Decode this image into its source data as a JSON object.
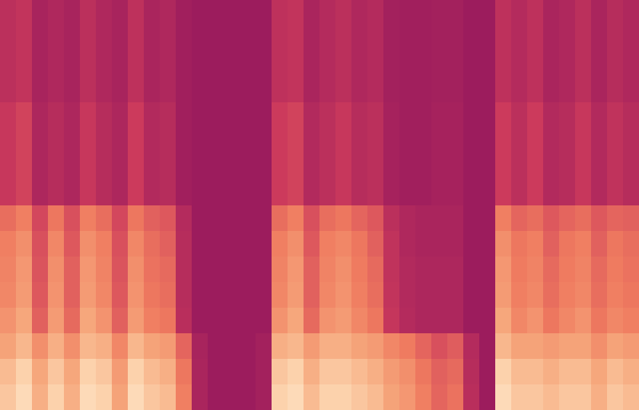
{
  "chart_data": {
    "type": "heatmap",
    "tick_labels": false,
    "zlim": [
      2,
      10
    ],
    "z": [
      [
        8.4,
        9,
        7.8,
        8.7,
        7.8,
        9,
        8.7,
        7.5,
        9,
        8.4,
        8.1,
        6.6,
        3.6,
        3,
        3,
        3,
        3.3,
        8.7,
        9,
        8.1,
        8.7,
        8.7,
        8.4,
        8.1,
        7.5,
        7.2,
        6.6,
        6,
        6.3,
        4.2,
        3,
        9,
        8.4,
        8.4,
        8.1,
        8.4,
        8.4,
        7.8,
        8.4,
        8.1
      ],
      [
        8.1,
        8.7,
        7.6,
        8.4,
        7.6,
        8.7,
        8.4,
        7.3,
        8.7,
        8.1,
        7.8,
        6.4,
        3.6,
        3,
        3,
        3,
        3.3,
        8.4,
        8.7,
        7.8,
        8.4,
        8.4,
        8.1,
        7.8,
        7.3,
        7,
        6.4,
        5.9,
        6.1,
        4.1,
        3,
        8.7,
        8.1,
        8.1,
        7.8,
        8.1,
        8.1,
        7.6,
        8.1,
        7.8
      ],
      [
        7.5,
        8,
        7,
        7.8,
        7,
        8,
        7.8,
        6.8,
        8,
        7.5,
        7.3,
        6,
        3.5,
        3,
        3,
        3,
        3.3,
        7.8,
        8,
        7.3,
        7.8,
        7.8,
        7.5,
        7.3,
        6.8,
        6.5,
        6,
        5.5,
        5.8,
        4,
        3,
        8,
        7.5,
        7.5,
        7.3,
        7.5,
        7.5,
        7,
        7.5,
        7.3
      ],
      [
        7.1,
        7.6,
        5.9,
        7.3,
        6.1,
        7.6,
        7.1,
        5.9,
        7.3,
        6.6,
        6.4,
        4.2,
        3,
        3,
        3,
        3,
        3,
        7.1,
        7.6,
        6.1,
        7.1,
        7.3,
        6.8,
        6.4,
        4.7,
        4,
        3.7,
        3.7,
        3.7,
        3,
        3,
        7.6,
        6.8,
        7.1,
        6.4,
        6.8,
        7.1,
        6.4,
        6.8,
        6.6
      ],
      [
        6.8,
        7.3,
        5.7,
        7.1,
        5.9,
        7.3,
        6.8,
        5.7,
        7.1,
        6.4,
        6.2,
        4.1,
        3,
        3,
        3,
        3,
        3,
        6.8,
        7.3,
        5.9,
        6.8,
        7.1,
        6.6,
        6.2,
        4.6,
        3.9,
        3.7,
        3.7,
        3.7,
        3,
        3,
        7.3,
        6.6,
        6.8,
        6.2,
        6.6,
        6.8,
        6.2,
        6.6,
        6.4
      ],
      [
        6.7,
        7.2,
        5.6,
        7,
        5.9,
        7.2,
        6.7,
        5.6,
        7,
        6.3,
        6.1,
        4.1,
        3,
        3,
        3,
        3,
        3,
        6.7,
        7.2,
        5.9,
        6.7,
        7,
        6.5,
        6.1,
        4.5,
        3.9,
        3.7,
        3.7,
        3.7,
        3,
        3,
        7.2,
        6.5,
        6.7,
        6.1,
        6.5,
        6.7,
        6.1,
        6.5,
        6.3
      ],
      [
        6.6,
        7,
        5.5,
        6.8,
        5.7,
        7,
        6.6,
        5.5,
        6.8,
        6.2,
        5.9,
        4.1,
        3,
        3,
        3,
        3,
        3,
        6.6,
        7,
        5.7,
        6.6,
        6.8,
        6.4,
        5.9,
        4.5,
        3.8,
        3.6,
        3.6,
        3.6,
        3,
        3,
        7,
        6.4,
        6.6,
        5.9,
        6.4,
        6.6,
        5.9,
        6.4,
        6.2
      ],
      [
        6.2,
        6.6,
        5.3,
        6.4,
        5.5,
        6.6,
        6.2,
        5.3,
        6.4,
        5.9,
        5.7,
        4,
        3,
        3,
        3,
        3,
        3,
        6.2,
        6.6,
        5.5,
        6.2,
        6.4,
        6,
        5.7,
        4.3,
        3.8,
        3.6,
        3.6,
        3.6,
        3,
        3,
        6.6,
        6,
        6.2,
        5.7,
        6,
        6.2,
        5.7,
        6,
        5.9
      ],
      [
        4.8,
        5.2,
        3.7,
        4.1,
        3.7,
        4.8,
        4.1,
        3.7,
        5,
        3.9,
        4.1,
        3.2,
        3,
        3,
        3,
        3,
        3,
        5,
        5.2,
        3.9,
        4.3,
        4.8,
        4.1,
        4.3,
        3.4,
        3.2,
        3.2,
        3.4,
        3.4,
        3,
        3,
        5,
        4.3,
        5,
        3.9,
        4.1,
        4.8,
        3.9,
        4.5,
        4.1
      ],
      [
        4.8,
        5.2,
        3.7,
        4.1,
        3.7,
        4.8,
        4.1,
        3.7,
        5,
        3.9,
        4.1,
        3.2,
        3,
        3,
        3,
        3,
        3,
        5,
        5.2,
        3.9,
        4.3,
        4.8,
        4.1,
        4.3,
        3.4,
        3.2,
        3.2,
        3.4,
        3.4,
        3,
        3,
        5,
        4.3,
        5,
        3.9,
        4.1,
        4.8,
        3.9,
        4.5,
        4.1
      ],
      [
        4.8,
        5.2,
        3.7,
        4.1,
        3.7,
        4.8,
        4.1,
        3.7,
        5,
        3.9,
        4.1,
        3.2,
        3,
        3,
        3,
        3,
        3,
        5,
        5.2,
        3.9,
        4.3,
        4.8,
        4.1,
        4.3,
        3.4,
        3.2,
        3.2,
        3.4,
        3.4,
        3,
        3,
        5,
        4.3,
        5,
        3.9,
        4.1,
        4.8,
        3.9,
        4.5,
        4.1
      ],
      [
        4.8,
        5.2,
        3.7,
        4.1,
        3.7,
        4.8,
        4.1,
        3.7,
        5,
        3.9,
        4.1,
        3.2,
        3,
        3,
        3,
        3,
        3,
        5,
        5.2,
        3.9,
        4.3,
        4.8,
        4.1,
        4.3,
        3.4,
        3.2,
        3.2,
        3.4,
        3.4,
        3,
        3,
        5,
        4.3,
        5,
        3.9,
        4.1,
        4.8,
        3.9,
        4.5,
        4.1
      ],
      [
        4.3,
        4.6,
        3.5,
        3.8,
        3.5,
        4.3,
        3.8,
        3.5,
        4.4,
        3.6,
        3.8,
        3.2,
        3,
        3,
        3,
        3,
        3,
        4.4,
        4.6,
        3.6,
        4,
        4.3,
        3.8,
        4,
        3.3,
        3.2,
        3.2,
        3.3,
        3.3,
        3,
        3,
        4.4,
        4,
        4.4,
        3.6,
        3.8,
        4.3,
        3.6,
        4.1,
        3.8
      ],
      [
        4.3,
        4.6,
        3.5,
        3.8,
        3.5,
        4.3,
        3.8,
        3.5,
        4.4,
        3.6,
        3.8,
        3.2,
        3,
        3,
        3,
        3,
        3,
        4.4,
        4.6,
        3.6,
        4,
        4.3,
        3.8,
        4,
        3.3,
        3.2,
        3.2,
        3.3,
        3.3,
        3,
        3,
        4.4,
        4,
        4.4,
        3.6,
        3.8,
        4.3,
        3.6,
        4.1,
        3.8
      ],
      [
        4.3,
        4.6,
        3.5,
        3.8,
        3.5,
        4.3,
        3.8,
        3.5,
        4.4,
        3.6,
        3.8,
        3.2,
        3,
        3,
        3,
        3,
        3,
        4.4,
        4.6,
        3.6,
        4,
        4.3,
        3.8,
        4,
        3.3,
        3.2,
        3.2,
        3.3,
        3.3,
        3,
        3,
        4.4,
        4,
        4.4,
        3.6,
        3.8,
        4.3,
        3.6,
        4.1,
        3.8
      ],
      [
        4.3,
        4.6,
        3.5,
        3.8,
        3.5,
        4.3,
        3.8,
        3.5,
        4.4,
        3.6,
        3.8,
        3.2,
        3,
        3,
        3,
        3,
        3,
        4.4,
        4.6,
        3.6,
        4,
        4.3,
        3.8,
        4,
        3.3,
        3.2,
        3.2,
        3.3,
        3.3,
        3,
        3,
        4.4,
        4,
        4.4,
        3.6,
        3.8,
        4.3,
        3.6,
        4.1,
        3.8
      ]
    ]
  }
}
